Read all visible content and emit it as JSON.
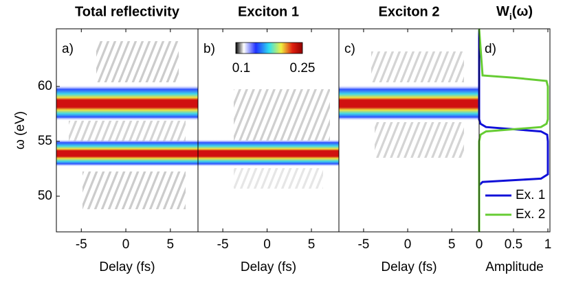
{
  "chart_data": [
    {
      "type": "heatmap",
      "title": "Total reflectivity",
      "panel_label": "a)",
      "xlabel": "Delay (fs)",
      "ylabel": "ω (eV)",
      "xlim": [
        -7.8,
        8.1
      ],
      "xticks": [
        -5,
        0,
        5
      ],
      "ylim": [
        46.75,
        65.25
      ],
      "yticks": [
        50,
        55,
        60
      ]
    },
    {
      "type": "heatmap",
      "title": "Exciton 1",
      "panel_label": "b)",
      "xlabel": "Delay (fs)",
      "xlim": [
        -7.8,
        8.1
      ],
      "xticks": [
        -5,
        0,
        5
      ],
      "ylim": [
        46.75,
        65.25
      ],
      "colorbar": {
        "lim": [
          0.1,
          0.25
        ],
        "ticks": [
          0.1,
          0.25
        ]
      }
    },
    {
      "type": "heatmap",
      "title": "Exciton 2",
      "panel_label": "c)",
      "xlabel": "Delay (fs)",
      "xlim": [
        -7.8,
        8.1
      ],
      "xticks": [
        -5,
        0,
        5
      ],
      "ylim": [
        46.75,
        65.25
      ]
    },
    {
      "type": "line",
      "title": "W",
      "title_subscript": "i",
      "title_suffix": "(ω)",
      "panel_label": "d)",
      "xlabel": "Amplitude",
      "xlim": [
        0,
        1.03
      ],
      "xticks": [
        0,
        0.5,
        1
      ],
      "ylim": [
        46.75,
        65.25
      ],
      "legend": "lower right",
      "y": [
        46.75,
        51.0,
        51.3,
        51.6,
        52.0,
        55.0,
        55.6,
        55.9,
        56.1,
        56.3,
        56.6,
        57.0,
        60.0,
        60.5,
        60.8,
        61.0,
        65.25
      ],
      "series": [
        {
          "name": "Ex. 1",
          "color": "#1010d8",
          "values": [
            0,
            0,
            0.05,
            0.9,
            1,
            1,
            0.99,
            0.9,
            0.5,
            0.1,
            0.02,
            0,
            0,
            0,
            0,
            0,
            0
          ]
        },
        {
          "name": "Ex. 2",
          "color": "#66cc33",
          "values": [
            0,
            0,
            0,
            0,
            0,
            0,
            0.02,
            0.1,
            0.5,
            0.9,
            0.98,
            1,
            1,
            0.98,
            0.5,
            0.05,
            0
          ]
        }
      ]
    }
  ]
}
